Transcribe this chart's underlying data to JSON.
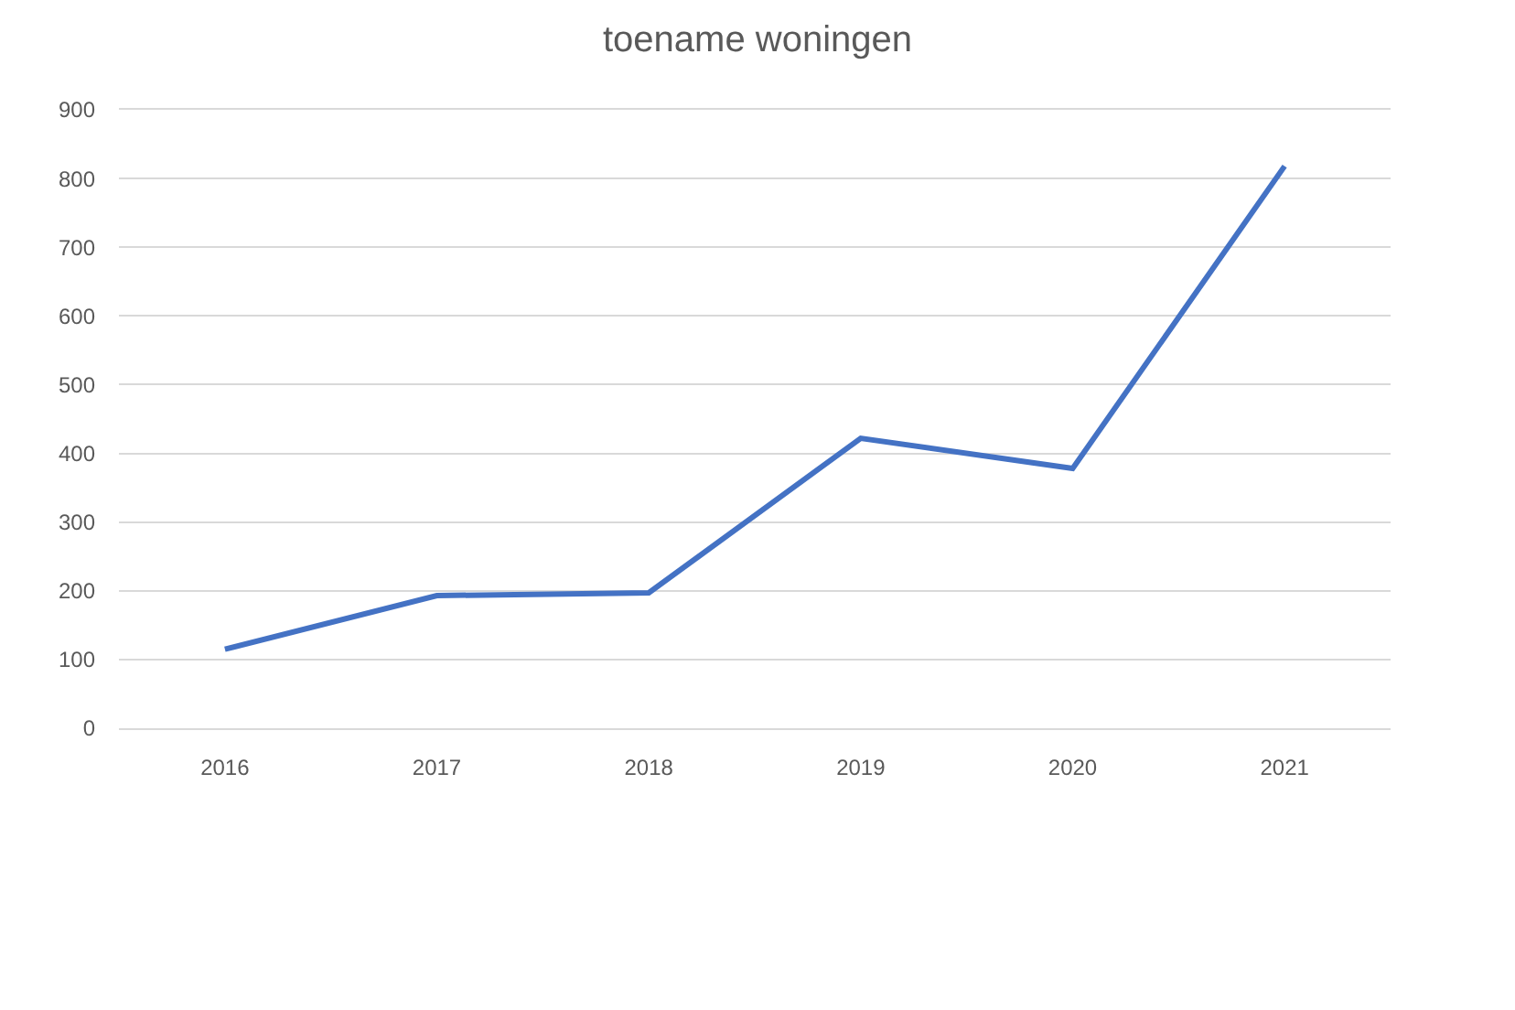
{
  "chart_data": {
    "type": "line",
    "title": "toename woningen",
    "categories": [
      "2016",
      "2017",
      "2018",
      "2019",
      "2020",
      "2021"
    ],
    "series": [
      {
        "color": "#4472c4",
        "values": [
          115,
          193,
          197,
          422,
          378,
          818
        ]
      }
    ],
    "ylim": [
      0,
      900
    ],
    "yticks": [
      0,
      100,
      200,
      300,
      400,
      500,
      600,
      700,
      800,
      900
    ],
    "grid": "y",
    "marker": "none",
    "line_style": "solid"
  }
}
